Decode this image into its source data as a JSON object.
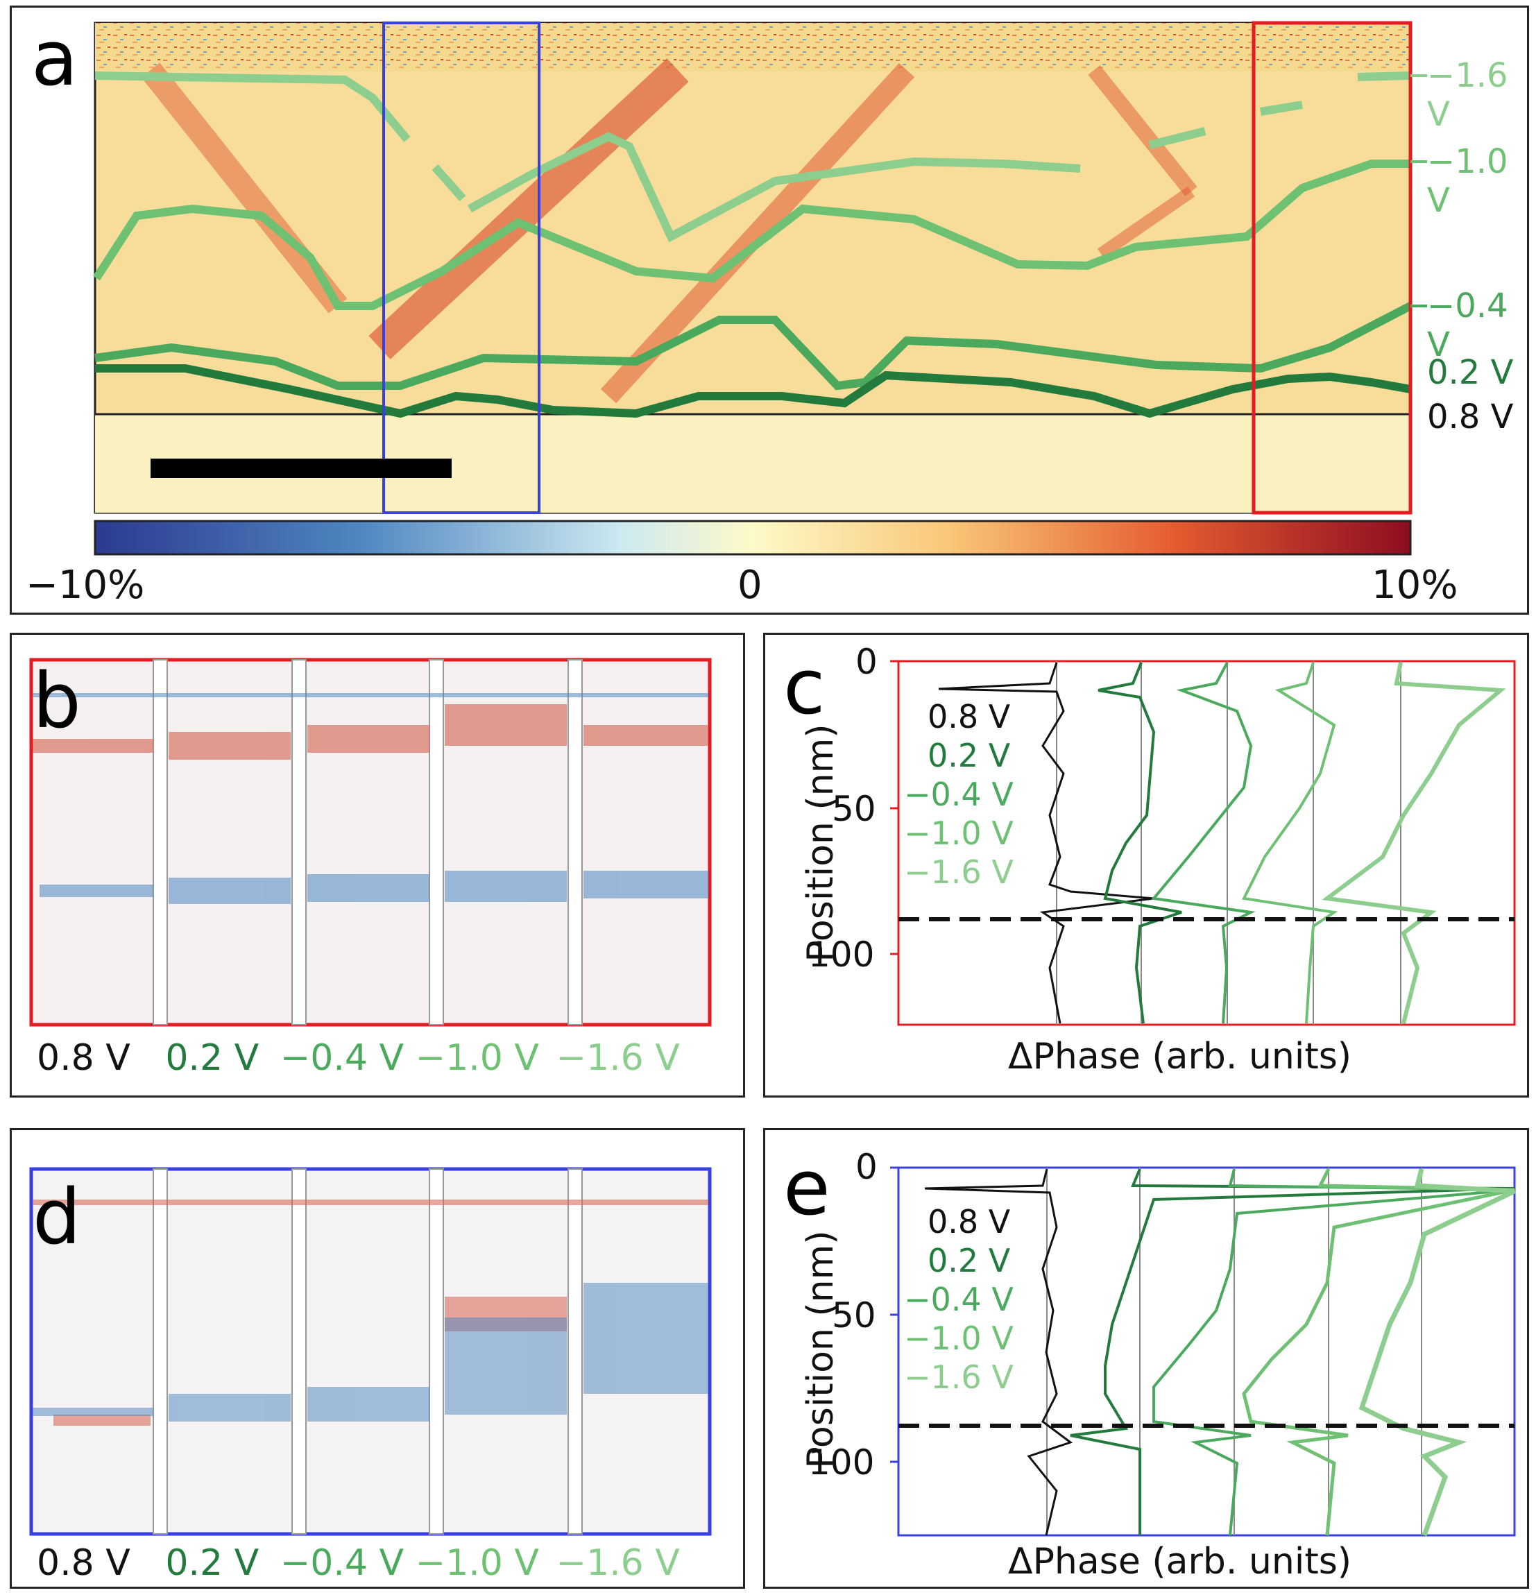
{
  "panels": {
    "a": {
      "letter": "a"
    },
    "b": {
      "letter": "b"
    },
    "c": {
      "letter": "c"
    },
    "d": {
      "letter": "d"
    },
    "e": {
      "letter": "e"
    }
  },
  "colorbar": {
    "min": "−10%",
    "mid": "0",
    "max": "10%"
  },
  "voltages": [
    {
      "label": "−1.6 V",
      "color": "#8dce8f"
    },
    {
      "label": "−1.0 V",
      "color": "#6ec173"
    },
    {
      "label": "−0.4 V",
      "color": "#4aa95c"
    },
    {
      "label": "0.2 V",
      "color": "#237a3d"
    },
    {
      "label": "0.8 V",
      "color": "#111111"
    }
  ],
  "strip_labels": [
    "0.8 V",
    "0.2 V",
    "−0.4 V",
    "−1.0 V",
    "−1.6 V"
  ],
  "strip_colors": [
    "#111111",
    "#237a3d",
    "#4aa95c",
    "#6ec173",
    "#8dce8f"
  ],
  "profile_axes": {
    "ylabel": "Position (nm)",
    "xlabel": "ΔPhase (arb. units)",
    "yticks": [
      "0",
      "50",
      "100"
    ]
  },
  "legend_labels": [
    "0.8 V",
    "0.2 V",
    "−0.4 V",
    "−1.0 V",
    "−1.6 V"
  ],
  "legend_colors": [
    "#111111",
    "#237a3d",
    "#4aa95c",
    "#6ec173",
    "#8dce8f"
  ]
}
